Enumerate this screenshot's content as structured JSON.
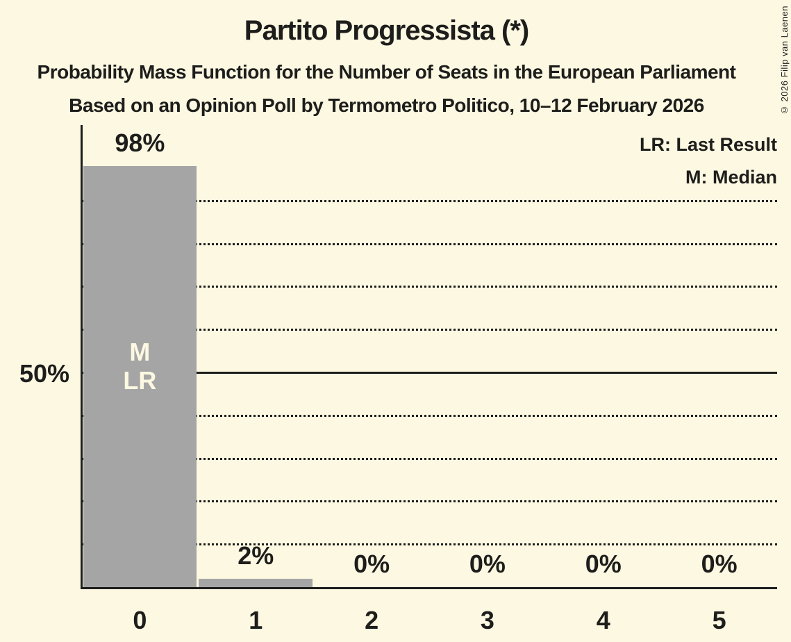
{
  "chart_data": {
    "type": "bar",
    "title": "Partito Progressista (*)",
    "subtitle": "Probability Mass Function for the Number of Seats in the European Parliament",
    "source_line": "Based on an Opinion Poll by Termometro Politico, 10–12 February 2026",
    "categories": [
      "0",
      "1",
      "2",
      "3",
      "4",
      "5"
    ],
    "values": [
      98,
      2,
      0,
      0,
      0,
      0
    ],
    "value_labels": [
      "98%",
      "2%",
      "0%",
      "0%",
      "0%",
      "0%"
    ],
    "xlabel": "",
    "ylabel": "",
    "ylim": [
      0,
      100
    ],
    "y_axis_tick_label": "50%",
    "y_dotted_gridlines_pct": [
      10,
      20,
      30,
      40,
      60,
      70,
      80,
      90
    ],
    "y_solid_line_pct": 50,
    "grid": "horizontal dotted, solid median line at 50%",
    "legend_position": "top-right",
    "legend": [
      "LR: Last Result",
      "M: Median"
    ],
    "bar_annotations": [
      {
        "index": 0,
        "lines": [
          "M",
          "LR"
        ]
      }
    ]
  },
  "copyright": "© 2026 Filip van Laenen",
  "colors": {
    "background": "#FCF8E2",
    "bar": "#A5A5A5",
    "text": "#1D1D1B",
    "bar_annotation_text": "#FCF8E2"
  }
}
